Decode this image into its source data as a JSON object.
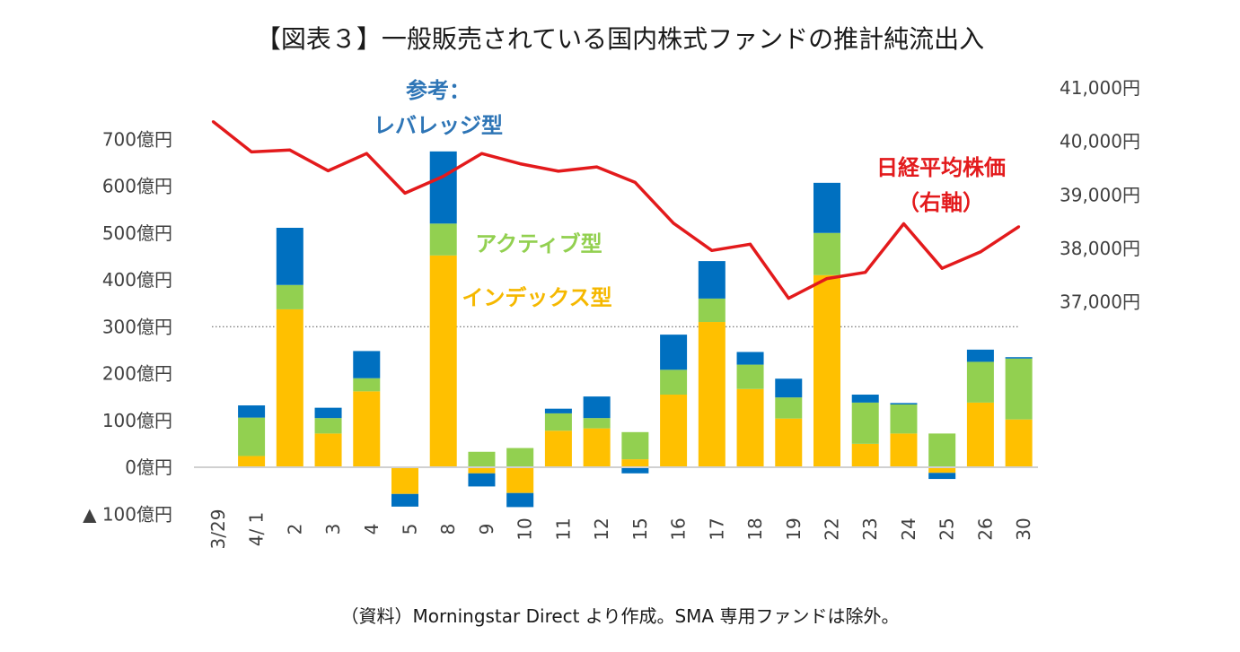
{
  "title": "【図表３】一般販売されている国内株式ファンドの推計純流出入",
  "caption": "（資料）Morningstar Direct より作成。SMA 専用ファンドは除外。",
  "colors": {
    "index": "#FFC000",
    "active": "#92D050",
    "leverage": "#0070C0",
    "nikkei": "#E31A1C",
    "leverage_label": "#2E75B6",
    "active_label": "#92D050",
    "index_label": "#F5B800",
    "nikkei_label": "#E31A1C"
  },
  "annotations": {
    "leverage_line1": "参考：",
    "leverage_line2": "レバレッジ型",
    "active": "アクティブ型",
    "index": "インデックス型",
    "nikkei_line1": "日経平均株価",
    "nikkei_line2": "（右軸）"
  },
  "chart_data": {
    "type": "bar",
    "stacked": true,
    "categories": [
      "3/29",
      "4/ 1",
      "2",
      "3",
      "4",
      "5",
      "8",
      "9",
      "10",
      "11",
      "12",
      "15",
      "16",
      "17",
      "18",
      "19",
      "22",
      "23",
      "24",
      "25",
      "26",
      "30"
    ],
    "series": [
      {
        "name": "インデックス型",
        "values": [
          0,
          24,
          337,
          72,
          162,
          -57,
          452,
          -13,
          -55,
          78,
          83,
          17,
          155,
          310,
          167,
          104,
          410,
          50,
          72,
          -12,
          138,
          102
        ]
      },
      {
        "name": "アクティブ型",
        "values": [
          0,
          82,
          52,
          33,
          28,
          0,
          68,
          33,
          41,
          37,
          22,
          58,
          53,
          50,
          52,
          45,
          90,
          88,
          62,
          72,
          87,
          130
        ]
      },
      {
        "name": "レバレッジ型",
        "values": [
          0,
          26,
          122,
          22,
          58,
          -27,
          154,
          -28,
          -30,
          10,
          46,
          -13,
          75,
          80,
          27,
          40,
          107,
          17,
          3,
          -13,
          26,
          3
        ]
      }
    ],
    "line": {
      "name": "日経平均株価",
      "axis": "right",
      "values": [
        40369,
        39803,
        39838,
        39451,
        39773,
        39032,
        39347,
        39773,
        39581,
        39442,
        39523,
        39233,
        38471,
        37962,
        38079,
        37068,
        37438,
        37552,
        38460,
        37628,
        37934,
        38406
      ]
    },
    "y_left": {
      "min": -100,
      "max": 700,
      "ticks": [
        700,
        600,
        500,
        400,
        300,
        200,
        100,
        0,
        -100
      ],
      "tick_labels": [
        "700億円",
        "600億円",
        "500億円",
        "400億円",
        "300億円",
        "200億円",
        "100億円",
        "0億円",
        "▲ 100億円"
      ]
    },
    "y_right": {
      "ticks": [
        41000,
        40000,
        39000,
        38000,
        37000
      ],
      "tick_labels": [
        "41,000円",
        "40,000円",
        "39,000円",
        "38,000円",
        "37,000円"
      ]
    },
    "reference_line": 300
  }
}
